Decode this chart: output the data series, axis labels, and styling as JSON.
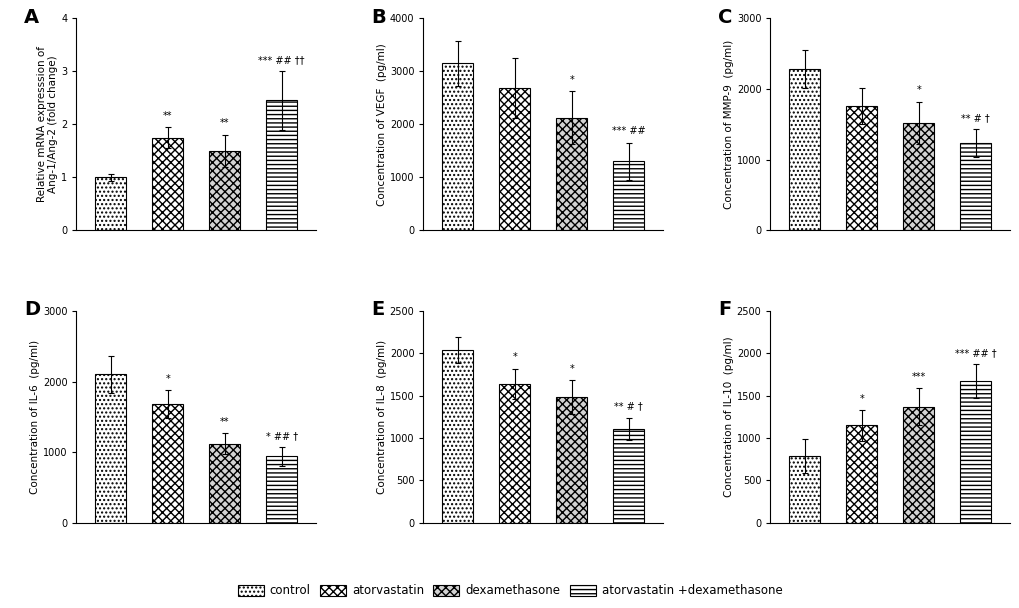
{
  "panels": {
    "A": {
      "ylabel": "Relative mRNA expresssion of\nAng-1/Ang-2 (fold change)",
      "ylim": [
        0,
        4
      ],
      "yticks": [
        0,
        1,
        2,
        3,
        4
      ],
      "values": [
        1.0,
        1.75,
        1.5,
        2.45
      ],
      "errors": [
        0.07,
        0.2,
        0.3,
        0.55
      ],
      "sig_labels": [
        "",
        "**",
        "**",
        "*** ## ††"
      ]
    },
    "B": {
      "ylabel": "Concentration of VEGF  (pg/ml)",
      "ylim": [
        0,
        4000
      ],
      "yticks": [
        0,
        1000,
        2000,
        3000,
        4000
      ],
      "values": [
        3150,
        2680,
        2120,
        1300
      ],
      "errors": [
        430,
        570,
        500,
        350
      ],
      "sig_labels": [
        "",
        "",
        "*",
        "*** ##"
      ]
    },
    "C": {
      "ylabel": "Concentration of MMP-9  (pg/ml)",
      "ylim": [
        0,
        3000
      ],
      "yticks": [
        0,
        1000,
        2000,
        3000
      ],
      "values": [
        2280,
        1760,
        1520,
        1230
      ],
      "errors": [
        270,
        250,
        300,
        200
      ],
      "sig_labels": [
        "",
        "",
        "*",
        "** # †"
      ]
    },
    "D": {
      "ylabel": "Concentration of IL-6  (pg/ml)",
      "ylim": [
        0,
        3000
      ],
      "yticks": [
        0,
        1000,
        2000,
        3000
      ],
      "values": [
        2100,
        1680,
        1120,
        940
      ],
      "errors": [
        260,
        200,
        150,
        130
      ],
      "sig_labels": [
        "",
        "*",
        "**",
        "* ## †"
      ]
    },
    "E": {
      "ylabel": "Concentration of IL-8  (pg/ml)",
      "ylim": [
        0,
        2500
      ],
      "yticks": [
        0,
        500,
        1000,
        1500,
        2000,
        2500
      ],
      "values": [
        2040,
        1640,
        1480,
        1110
      ],
      "errors": [
        150,
        180,
        200,
        130
      ],
      "sig_labels": [
        "",
        "*",
        "*",
        "** # †"
      ]
    },
    "F": {
      "ylabel": "Concentration of IL-10  (pg/ml)",
      "ylim": [
        0,
        2500
      ],
      "yticks": [
        0,
        500,
        1000,
        1500,
        2000,
        2500
      ],
      "values": [
        790,
        1150,
        1370,
        1670
      ],
      "errors": [
        200,
        180,
        220,
        200
      ],
      "sig_labels": [
        "",
        "*",
        "***",
        "*** ## †"
      ]
    }
  },
  "groups": [
    "control",
    "atorvastatin",
    "dexamethasone",
    "atorvastatin +dexamethasone"
  ],
  "bar_width": 0.55,
  "background_color": "white",
  "label_fontsize": 7.5,
  "sig_fontsize": 7,
  "panel_label_fontsize": 14,
  "legend_fontsize": 8.5
}
